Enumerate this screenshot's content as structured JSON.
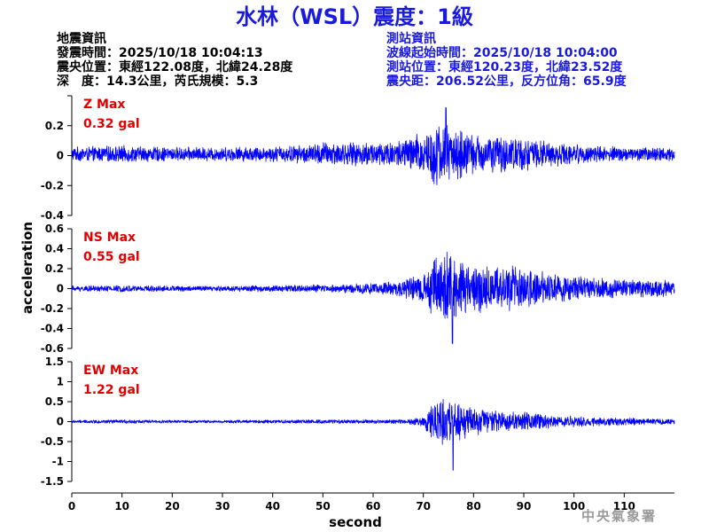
{
  "title": "水林（WSL）震度：1級",
  "quake_info": {
    "heading": "地震資訊",
    "origin_time": "發震時間：2025/10/18 10:04:13",
    "epicenter": "震央位置：東經122.08度，北緯24.28度",
    "depth_magnitude": "深　度：14.3公里，芮氏規模：5.3"
  },
  "station_info": {
    "heading": "測站資訊",
    "wave_start": "波線起始時間：2025/10/18 10:04:00",
    "station_location": "測站位置：東經120.23度，北緯23.52度",
    "distance_azimuth": "震央距：206.52公里，反方位角：65.9度"
  },
  "agency": "中央氣象署",
  "colors": {
    "trace": "#0000ff",
    "max_label": "#e00000",
    "title": "#1a1adc",
    "axis": "#000000"
  },
  "chart_data": {
    "type": "line",
    "xlabel": "second",
    "ylabel": "acceleration",
    "xlim": [
      0,
      120
    ],
    "xticks": [
      0,
      10,
      20,
      30,
      40,
      50,
      60,
      70,
      80,
      90,
      100,
      110
    ],
    "grid": false,
    "panels": [
      {
        "name": "Z Max",
        "max_value": "0.32 gal",
        "ylim": [
          -0.4,
          0.4
        ],
        "yticks": [
          -0.4,
          -0.2,
          0,
          0.2,
          0.4
        ],
        "ytick_labels": [
          "-0.4",
          "-0.2",
          "0",
          "0.2",
          ""
        ],
        "offset": 0.01,
        "envelope": [
          [
            0,
            0.05
          ],
          [
            10,
            0.06
          ],
          [
            20,
            0.05
          ],
          [
            30,
            0.05
          ],
          [
            40,
            0.055
          ],
          [
            48,
            0.07
          ],
          [
            50,
            0.09
          ],
          [
            55,
            0.08
          ],
          [
            60,
            0.09
          ],
          [
            65,
            0.1
          ],
          [
            70,
            0.16
          ],
          [
            73,
            0.24
          ],
          [
            76,
            0.2
          ],
          [
            80,
            0.14
          ],
          [
            85,
            0.13
          ],
          [
            90,
            0.12
          ],
          [
            95,
            0.09
          ],
          [
            100,
            0.07
          ],
          [
            110,
            0.05
          ],
          [
            120,
            0.05
          ]
        ],
        "peak": {
          "t": 74.5,
          "value": 0.32
        }
      },
      {
        "name": "NS Max",
        "max_value": "0.55 gal",
        "ylim": [
          -0.6,
          0.6
        ],
        "yticks": [
          -0.6,
          -0.4,
          -0.2,
          0,
          0.2,
          0.4,
          0.6
        ],
        "ytick_labels": [
          "-0.6",
          "-0.4",
          "-0.2",
          "0",
          "0.2",
          "0.4",
          "0.6"
        ],
        "offset": 0.0,
        "envelope": [
          [
            0,
            0.03
          ],
          [
            10,
            0.035
          ],
          [
            20,
            0.03
          ],
          [
            30,
            0.03
          ],
          [
            40,
            0.035
          ],
          [
            48,
            0.04
          ],
          [
            55,
            0.05
          ],
          [
            60,
            0.06
          ],
          [
            65,
            0.08
          ],
          [
            70,
            0.15
          ],
          [
            72,
            0.32
          ],
          [
            75,
            0.42
          ],
          [
            78,
            0.3
          ],
          [
            82,
            0.24
          ],
          [
            86,
            0.26
          ],
          [
            90,
            0.22
          ],
          [
            95,
            0.16
          ],
          [
            100,
            0.13
          ],
          [
            110,
            0.1
          ],
          [
            120,
            0.08
          ]
        ],
        "peak": {
          "t": 75.8,
          "value": -0.55
        }
      },
      {
        "name": "EW Max",
        "max_value": "1.22 gal",
        "ylim": [
          -1.5,
          1.5
        ],
        "yticks": [
          -1.5,
          -1,
          -0.5,
          0,
          0.5,
          1,
          1.5
        ],
        "ytick_labels": [
          "-1.5",
          "-1",
          "-0.5",
          "0",
          "0.5",
          "1",
          "1.5"
        ],
        "offset": 0.0,
        "envelope": [
          [
            0,
            0.04
          ],
          [
            10,
            0.05
          ],
          [
            20,
            0.04
          ],
          [
            30,
            0.04
          ],
          [
            40,
            0.05
          ],
          [
            50,
            0.05
          ],
          [
            60,
            0.05
          ],
          [
            66,
            0.06
          ],
          [
            70,
            0.12
          ],
          [
            71,
            0.45
          ],
          [
            74,
            0.65
          ],
          [
            77,
            0.5
          ],
          [
            80,
            0.4
          ],
          [
            85,
            0.3
          ],
          [
            90,
            0.25
          ],
          [
            95,
            0.18
          ],
          [
            100,
            0.14
          ],
          [
            110,
            0.1
          ],
          [
            120,
            0.07
          ]
        ],
        "peak": {
          "t": 75.9,
          "value": -1.22
        }
      }
    ]
  }
}
